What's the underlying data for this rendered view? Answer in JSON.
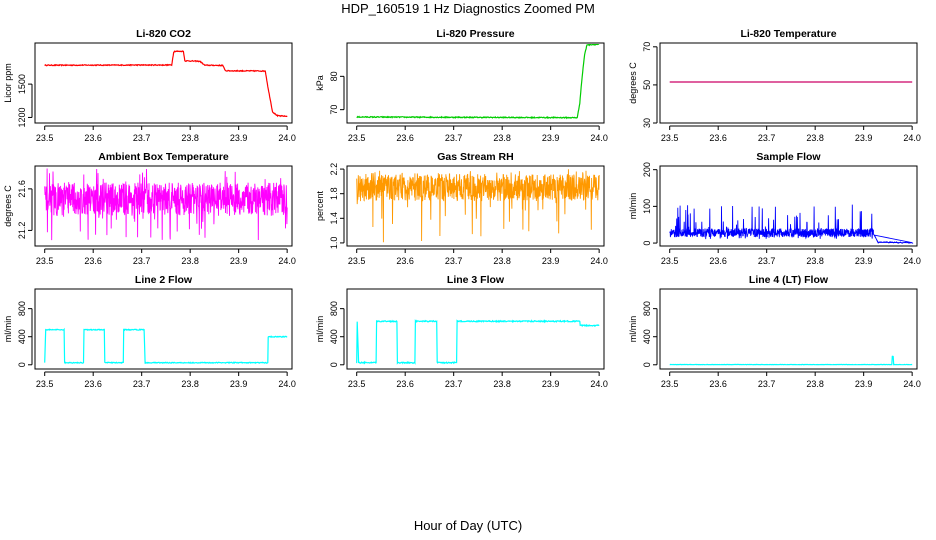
{
  "figure": {
    "title": "HDP_160519  1 Hz Diagnostics Zoomed PM",
    "xlabel": "Hour of Day (UTC)"
  },
  "colors": {
    "co2": "#ff0000",
    "pressure": "#00cc00",
    "li820_temp": "#cc0066",
    "ambient_temp": "#ff00ff",
    "rh": "#ff9900",
    "sample_flow": "#0000ff",
    "line_flows": "#00ffff"
  },
  "chart_data": [
    {
      "id": "co2",
      "type": "line",
      "title": "Li-820 CO2",
      "ylabel": "Licor ppm",
      "xlim": [
        23.48,
        24.01
      ],
      "ylim": [
        1150,
        1870
      ],
      "xticks": [
        23.5,
        23.6,
        23.7,
        23.8,
        23.9,
        24.0
      ],
      "xtick_labels": [
        "23.5",
        "23.6",
        "23.7",
        "23.8",
        "23.9",
        "24.0"
      ],
      "yticks": [
        1200,
        1500
      ],
      "ytick_labels": [
        "1200",
        "1500"
      ],
      "color": "#ff0000",
      "noise": 4,
      "points": [
        [
          23.5,
          1670
        ],
        [
          23.762,
          1672
        ],
        [
          23.766,
          1790
        ],
        [
          23.768,
          1795
        ],
        [
          23.786,
          1795
        ],
        [
          23.789,
          1710
        ],
        [
          23.82,
          1705
        ],
        [
          23.83,
          1670
        ],
        [
          23.867,
          1668
        ],
        [
          23.873,
          1620
        ],
        [
          23.955,
          1618
        ],
        [
          23.96,
          1480
        ],
        [
          23.97,
          1250
        ],
        [
          23.98,
          1215
        ],
        [
          24.0,
          1210
        ]
      ]
    },
    {
      "id": "pressure",
      "type": "line",
      "title": "Li-820 Pressure",
      "ylabel": "kPa",
      "xlim": [
        23.48,
        24.01
      ],
      "ylim": [
        66,
        90
      ],
      "xticks": [
        23.5,
        23.6,
        23.7,
        23.8,
        23.9,
        24.0
      ],
      "xtick_labels": [
        "23.5",
        "23.6",
        "23.7",
        "23.8",
        "23.9",
        "24.0"
      ],
      "yticks": [
        70,
        80
      ],
      "ytick_labels": [
        "70",
        "80"
      ],
      "color": "#00cc00",
      "noise": 0.15,
      "points": [
        [
          23.5,
          67.8
        ],
        [
          23.955,
          67.6
        ],
        [
          23.96,
          72
        ],
        [
          23.965,
          80
        ],
        [
          23.97,
          86.5
        ],
        [
          23.975,
          89.5
        ],
        [
          24.0,
          89.6
        ]
      ]
    },
    {
      "id": "li820_temp",
      "type": "line",
      "title": "Li-820 Temperature",
      "ylabel": "degrees C",
      "xlim": [
        23.48,
        24.01
      ],
      "ylim": [
        30,
        72
      ],
      "xticks": [
        23.5,
        23.6,
        23.7,
        23.8,
        23.9,
        24.0
      ],
      "xtick_labels": [
        "23.5",
        "23.6",
        "23.7",
        "23.8",
        "23.9",
        "24.0"
      ],
      "yticks": [
        30,
        50,
        70
      ],
      "ytick_labels": [
        "30",
        "50",
        "70"
      ],
      "color": "#cc0066",
      "noise": 0,
      "points": [
        [
          23.5,
          51.5
        ],
        [
          24.0,
          51.5
        ]
      ]
    },
    {
      "id": "ambient_temp",
      "type": "noise",
      "title": "Ambient Box Temperature",
      "ylabel": "degrees C",
      "xlim": [
        23.48,
        24.01
      ],
      "ylim": [
        21.05,
        21.82
      ],
      "xticks": [
        23.5,
        23.6,
        23.7,
        23.8,
        23.9,
        24.0
      ],
      "xtick_labels": [
        "23.5",
        "23.6",
        "23.7",
        "23.8",
        "23.9",
        "24.0"
      ],
      "yticks": [
        21.2,
        21.6
      ],
      "ytick_labels": [
        "21.2",
        "21.6"
      ],
      "color": "#ff00ff",
      "x0": 23.5,
      "x1": 24.0,
      "base": 21.5,
      "spread": 0.16,
      "spike_min": 21.1,
      "spike_max": 21.8
    },
    {
      "id": "rh",
      "type": "noise",
      "title": "Gas Stream RH",
      "ylabel": "percent",
      "xlim": [
        23.48,
        24.01
      ],
      "ylim": [
        0.95,
        2.25
      ],
      "xticks": [
        23.5,
        23.6,
        23.7,
        23.8,
        23.9,
        24.0
      ],
      "xtick_labels": [
        "23.5",
        "23.6",
        "23.7",
        "23.8",
        "23.9",
        "24.0"
      ],
      "yticks": [
        1.0,
        1.4,
        1.8,
        2.2
      ],
      "ytick_labels": [
        "1.0",
        "1.4",
        "1.8",
        "2.2"
      ],
      "color": "#ff9900",
      "x0": 23.5,
      "x1": 24.0,
      "base": 1.9,
      "spread": 0.22,
      "spike_min": 1.0,
      "spike_max": 2.2
    },
    {
      "id": "sample_flow",
      "type": "noise",
      "title": "Sample Flow",
      "ylabel": "ml/min",
      "xlim": [
        23.48,
        24.01
      ],
      "ylim": [
        -8,
        210
      ],
      "xticks": [
        23.5,
        23.6,
        23.7,
        23.8,
        23.9,
        24.0
      ],
      "xtick_labels": [
        "23.5",
        "23.6",
        "23.7",
        "23.8",
        "23.9",
        "24.0"
      ],
      "yticks": [
        0,
        100,
        200
      ],
      "ytick_labels": [
        "0",
        "100",
        "200"
      ],
      "color": "#0000ff",
      "x0": 23.5,
      "x1": 23.92,
      "base": 28,
      "spread": 12,
      "spike_min": 10,
      "spike_max": 105,
      "tail": [
        [
          23.92,
          25
        ],
        [
          23.93,
          2
        ],
        [
          24.0,
          1
        ]
      ]
    },
    {
      "id": "line2_flow",
      "type": "line",
      "title": "Line 2 Flow",
      "ylabel": "ml/min",
      "xlim": [
        23.48,
        24.01
      ],
      "ylim": [
        -60,
        1080
      ],
      "xticks": [
        23.5,
        23.6,
        23.7,
        23.8,
        23.9,
        24.0
      ],
      "xtick_labels": [
        "23.5",
        "23.6",
        "23.7",
        "23.8",
        "23.9",
        "24.0"
      ],
      "yticks": [
        0,
        400,
        800
      ],
      "ytick_labels": [
        "0",
        "400",
        "800"
      ],
      "color": "#00ffff",
      "noise": 6,
      "points": [
        [
          23.5,
          30
        ],
        [
          23.502,
          500
        ],
        [
          23.54,
          500
        ],
        [
          23.541,
          30
        ],
        [
          23.58,
          30
        ],
        [
          23.581,
          500
        ],
        [
          23.623,
          500
        ],
        [
          23.624,
          30
        ],
        [
          23.662,
          30
        ],
        [
          23.663,
          500
        ],
        [
          23.705,
          500
        ],
        [
          23.707,
          30
        ],
        [
          23.96,
          30
        ],
        [
          23.961,
          400
        ],
        [
          24.0,
          400
        ]
      ]
    },
    {
      "id": "line3_flow",
      "type": "line",
      "title": "Line 3 Flow",
      "ylabel": "ml/min",
      "xlim": [
        23.48,
        24.01
      ],
      "ylim": [
        -60,
        1080
      ],
      "xticks": [
        23.5,
        23.6,
        23.7,
        23.8,
        23.9,
        24.0
      ],
      "xtick_labels": [
        "23.5",
        "23.6",
        "23.7",
        "23.8",
        "23.9",
        "24.0"
      ],
      "yticks": [
        0,
        400,
        800
      ],
      "ytick_labels": [
        "0",
        "400",
        "800"
      ],
      "color": "#00ffff",
      "noise": 8,
      "points": [
        [
          23.5,
          30
        ],
        [
          23.501,
          620
        ],
        [
          23.504,
          30
        ],
        [
          23.54,
          30
        ],
        [
          23.541,
          620
        ],
        [
          23.583,
          620
        ],
        [
          23.584,
          30
        ],
        [
          23.62,
          30
        ],
        [
          23.621,
          620
        ],
        [
          23.665,
          620
        ],
        [
          23.666,
          30
        ],
        [
          23.706,
          30
        ],
        [
          23.707,
          620
        ],
        [
          23.96,
          620
        ],
        [
          23.961,
          560
        ],
        [
          24.0,
          560
        ]
      ]
    },
    {
      "id": "line4_flow",
      "type": "line",
      "title": "Line 4 (LT) Flow",
      "ylabel": "ml/min",
      "xlim": [
        23.48,
        24.01
      ],
      "ylim": [
        -60,
        1080
      ],
      "xticks": [
        23.5,
        23.6,
        23.7,
        23.8,
        23.9,
        24.0
      ],
      "xtick_labels": [
        "23.5",
        "23.6",
        "23.7",
        "23.8",
        "23.9",
        "24.0"
      ],
      "yticks": [
        0,
        400,
        800
      ],
      "ytick_labels": [
        "0",
        "400",
        "800"
      ],
      "color": "#00ffff",
      "noise": 2,
      "points": [
        [
          23.5,
          3
        ],
        [
          23.958,
          3
        ],
        [
          23.959,
          120
        ],
        [
          23.961,
          120
        ],
        [
          23.962,
          3
        ],
        [
          24.0,
          3
        ]
      ]
    }
  ]
}
